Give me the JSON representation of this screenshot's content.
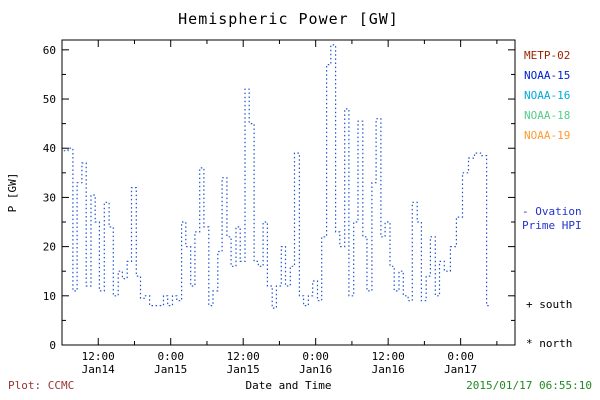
{
  "chart_data": {
    "type": "line",
    "subtype": "dotted-step",
    "title": "Hemispheric Power [GW]",
    "xlabel": "Date and Time",
    "ylabel": "P [GW]",
    "ylim": [
      0,
      62
    ],
    "yticks": [
      0,
      10,
      20,
      30,
      40,
      50,
      60
    ],
    "xlim_hours": [
      6,
      81
    ],
    "x_epoch": "hours since 2015-01-14 00:00",
    "xticks": [
      {
        "t": 12,
        "time": "12:00",
        "date": "Jan14"
      },
      {
        "t": 24,
        "time": "0:00",
        "date": "Jan15"
      },
      {
        "t": 36,
        "time": "12:00",
        "date": "Jan15"
      },
      {
        "t": 48,
        "time": "0:00",
        "date": "Jan16"
      },
      {
        "t": 60,
        "time": "12:00",
        "date": "Jan16"
      },
      {
        "t": 72,
        "time": "0:00",
        "date": "Jan17"
      }
    ],
    "grid": false,
    "legend_position": "right",
    "series": [
      {
        "name": "Ovation Prime HPI",
        "color": "#2255cc",
        "style": "dotted-step",
        "points": [
          [
            6.3,
            39.5
          ],
          [
            7.0,
            40
          ],
          [
            7.8,
            11
          ],
          [
            8.5,
            33
          ],
          [
            9.3,
            37
          ],
          [
            10.0,
            12
          ],
          [
            10.8,
            30.5
          ],
          [
            11.5,
            25
          ],
          [
            12.2,
            11
          ],
          [
            13.0,
            29
          ],
          [
            13.8,
            24
          ],
          [
            14.5,
            10
          ],
          [
            15.3,
            15
          ],
          [
            16.0,
            13.5
          ],
          [
            16.8,
            17
          ],
          [
            17.5,
            32
          ],
          [
            18.3,
            14
          ],
          [
            19.0,
            9.5
          ],
          [
            19.8,
            10
          ],
          [
            20.5,
            8
          ],
          [
            21.3,
            8
          ],
          [
            22.0,
            8
          ],
          [
            22.8,
            10
          ],
          [
            23.5,
            8
          ],
          [
            24.3,
            10
          ],
          [
            25.0,
            9
          ],
          [
            25.8,
            25
          ],
          [
            26.5,
            20
          ],
          [
            27.3,
            12
          ],
          [
            28.0,
            23
          ],
          [
            28.8,
            36
          ],
          [
            29.5,
            24
          ],
          [
            30.3,
            8
          ],
          [
            31.0,
            11
          ],
          [
            31.8,
            19
          ],
          [
            32.5,
            34
          ],
          [
            33.3,
            22
          ],
          [
            34.0,
            16
          ],
          [
            34.8,
            24
          ],
          [
            35.5,
            17
          ],
          [
            36.3,
            52
          ],
          [
            37.0,
            45
          ],
          [
            37.8,
            17
          ],
          [
            38.5,
            16
          ],
          [
            39.3,
            25
          ],
          [
            40.0,
            12
          ],
          [
            40.8,
            7.5
          ],
          [
            41.5,
            12
          ],
          [
            42.3,
            20
          ],
          [
            43.0,
            12
          ],
          [
            43.8,
            16
          ],
          [
            44.5,
            39
          ],
          [
            45.3,
            10
          ],
          [
            46.0,
            8
          ],
          [
            46.8,
            10
          ],
          [
            47.5,
            13
          ],
          [
            48.3,
            9
          ],
          [
            49.0,
            22
          ],
          [
            49.8,
            57
          ],
          [
            50.5,
            61
          ],
          [
            51.3,
            23
          ],
          [
            52.0,
            20
          ],
          [
            52.8,
            48
          ],
          [
            53.5,
            10
          ],
          [
            54.3,
            25
          ],
          [
            55.0,
            45.5
          ],
          [
            55.8,
            22
          ],
          [
            56.5,
            11
          ],
          [
            57.3,
            33
          ],
          [
            58.0,
            46
          ],
          [
            58.8,
            22
          ],
          [
            59.5,
            25
          ],
          [
            60.3,
            16
          ],
          [
            61.0,
            11
          ],
          [
            61.8,
            15
          ],
          [
            62.5,
            10
          ],
          [
            63.3,
            9
          ],
          [
            64.0,
            29
          ],
          [
            64.8,
            25
          ],
          [
            65.5,
            9
          ],
          [
            66.3,
            14
          ],
          [
            67.0,
            22
          ],
          [
            67.8,
            10
          ],
          [
            68.5,
            17
          ],
          [
            69.3,
            15
          ],
          [
            70.3,
            20
          ],
          [
            71.3,
            26
          ],
          [
            72.3,
            35
          ],
          [
            73.3,
            38
          ],
          [
            74.3,
            39
          ],
          [
            75.3,
            38.5
          ],
          [
            76.3,
            8
          ],
          [
            77.0,
            8
          ]
        ]
      }
    ]
  },
  "legend": {
    "satellites": [
      {
        "label": "METP-02",
        "color": "#992200"
      },
      {
        "label": "NOAA-15",
        "color": "#0022cc"
      },
      {
        "label": "NOAA-16",
        "color": "#00aadd"
      },
      {
        "label": "NOAA-18",
        "color": "#55cc88"
      },
      {
        "label": "NOAA-19",
        "color": "#ff9933"
      }
    ],
    "hpi_line1": "- Ovation",
    "hpi_line2": "Prime HPI",
    "hpi_color": "#2233cc",
    "marker_south": "+ south",
    "marker_north": "* north"
  },
  "footer": {
    "plot_credit": "Plot: CCMC",
    "credit_color": "#993333",
    "xlabel": "Date and Time",
    "timestamp": "2015/01/17 06:55:10",
    "timestamp_color": "#228822"
  }
}
